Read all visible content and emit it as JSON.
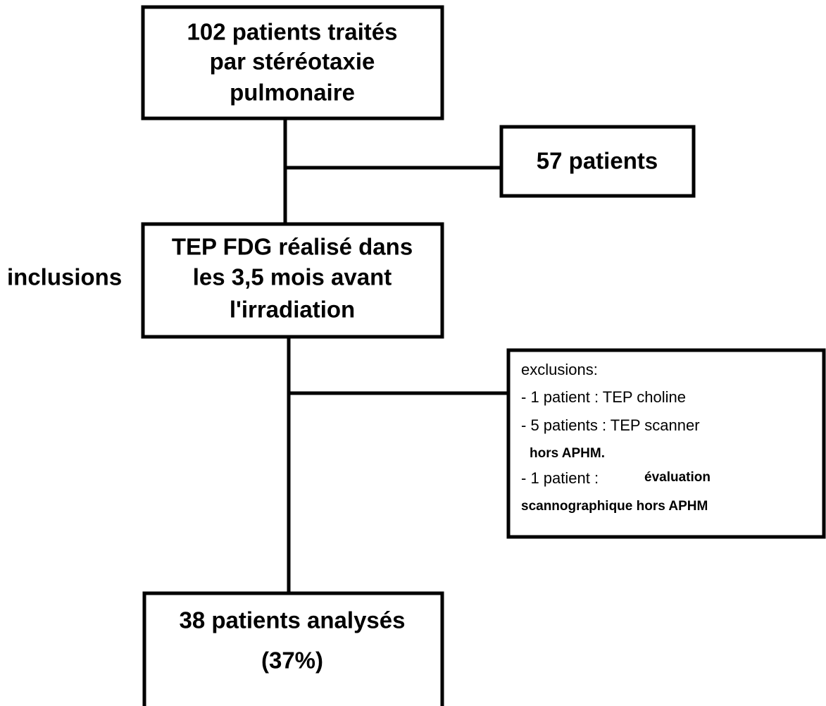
{
  "nodes": [
    {
      "lines": [
        "102 patients traités",
        "par stéréotaxie",
        "pulmonaire"
      ]
    },
    {
      "lines": [
        "57 patients"
      ]
    },
    {
      "lines": [
        "TEP FDG réalisé dans",
        "les 3,5 mois avant",
        "l'irradiation"
      ]
    },
    {
      "title": "exclusions:",
      "items": [
        [
          "- 1 patient : TEP choline"
        ],
        [
          "- 5 patients : TEP scanner",
          "hors APHM."
        ],
        [
          "- 1 patient :",
          "évaluation",
          "scannographique hors APHM"
        ]
      ]
    },
    {
      "lines": [
        "38 patients analysés",
        "(37%)"
      ]
    }
  ],
  "side_label": "inclusions"
}
